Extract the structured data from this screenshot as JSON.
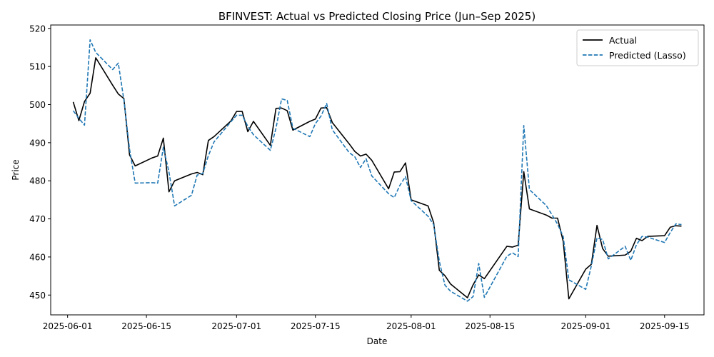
{
  "chart_data": {
    "type": "line",
    "title": "BFINVEST: Actual vs Predicted Closing Price (Jun–Sep 2025)",
    "xlabel": "Date",
    "ylabel": "Price",
    "xlim": [
      "2025-05-29",
      "2025-09-22"
    ],
    "ylim": [
      444.8,
      520.9
    ],
    "y_ticks": [
      450,
      460,
      470,
      480,
      490,
      500,
      510,
      520
    ],
    "x_ticks": [
      "2025-06-01",
      "2025-06-15",
      "2025-07-01",
      "2025-07-15",
      "2025-08-01",
      "2025-08-15",
      "2025-09-01",
      "2025-09-15"
    ],
    "grid": false,
    "legend_position": "upper right",
    "series": [
      {
        "name": "Actual",
        "color": "#000000",
        "style": "solid",
        "x": [
          "2025-06-02",
          "2025-06-03",
          "2025-06-04",
          "2025-06-05",
          "2025-06-06",
          "2025-06-09",
          "2025-06-10",
          "2025-06-11",
          "2025-06-12",
          "2025-06-13",
          "2025-06-16",
          "2025-06-17",
          "2025-06-18",
          "2025-06-19",
          "2025-06-20",
          "2025-06-23",
          "2025-06-24",
          "2025-06-25",
          "2025-06-26",
          "2025-06-27",
          "2025-06-30",
          "2025-07-01",
          "2025-07-02",
          "2025-07-03",
          "2025-07-04",
          "2025-07-07",
          "2025-07-08",
          "2025-07-09",
          "2025-07-10",
          "2025-07-11",
          "2025-07-14",
          "2025-07-15",
          "2025-07-16",
          "2025-07-17",
          "2025-07-18",
          "2025-07-21",
          "2025-07-22",
          "2025-07-23",
          "2025-07-24",
          "2025-07-25",
          "2025-07-28",
          "2025-07-29",
          "2025-07-30",
          "2025-07-31",
          "2025-08-01",
          "2025-08-04",
          "2025-08-05",
          "2025-08-06",
          "2025-08-07",
          "2025-08-08",
          "2025-08-11",
          "2025-08-12",
          "2025-08-13",
          "2025-08-14",
          "2025-08-18",
          "2025-08-19",
          "2025-08-20",
          "2025-08-21",
          "2025-08-22",
          "2025-08-25",
          "2025-08-26",
          "2025-08-27",
          "2025-08-28",
          "2025-08-29",
          "2025-09-01",
          "2025-09-02",
          "2025-09-03",
          "2025-09-04",
          "2025-09-05",
          "2025-09-08",
          "2025-09-09",
          "2025-09-10",
          "2025-09-11",
          "2025-09-12",
          "2025-09-15",
          "2025-09-16",
          "2025-09-17",
          "2025-09-18"
        ],
        "values": [
          500.7,
          495.8,
          500.8,
          503.0,
          512.3,
          505.1,
          502.8,
          501.6,
          486.8,
          483.9,
          486.0,
          486.5,
          491.2,
          477.1,
          480.0,
          481.8,
          482.2,
          481.6,
          490.6,
          491.6,
          495.7,
          498.2,
          498.2,
          492.9,
          495.6,
          489.3,
          499.0,
          499.1,
          498.4,
          493.3,
          495.6,
          496.2,
          499.1,
          499.2,
          495.3,
          489.7,
          487.7,
          486.5,
          487.0,
          485.4,
          477.9,
          482.3,
          482.4,
          484.7,
          475.0,
          473.4,
          469.0,
          456.5,
          455.1,
          452.9,
          449.3,
          452.7,
          455.3,
          454.3,
          462.8,
          462.6,
          463.1,
          482.4,
          472.6,
          471.0,
          470.2,
          470.2,
          464.1,
          449.0,
          456.8,
          458.1,
          468.3,
          462.2,
          460.2,
          460.5,
          461.5,
          464.9,
          464.3,
          465.4,
          465.6,
          467.8,
          468.2,
          468.1
        ]
      },
      {
        "name": "Predicted (Lasso)",
        "color": "#1f77b4",
        "style": "dashed",
        "x": [
          "2025-06-02",
          "2025-06-03",
          "2025-06-04",
          "2025-06-05",
          "2025-06-06",
          "2025-06-09",
          "2025-06-10",
          "2025-06-11",
          "2025-06-12",
          "2025-06-13",
          "2025-06-16",
          "2025-06-17",
          "2025-06-18",
          "2025-06-19",
          "2025-06-20",
          "2025-06-23",
          "2025-06-24",
          "2025-06-25",
          "2025-06-26",
          "2025-06-27",
          "2025-06-30",
          "2025-07-01",
          "2025-07-02",
          "2025-07-03",
          "2025-07-04",
          "2025-07-07",
          "2025-07-08",
          "2025-07-09",
          "2025-07-10",
          "2025-07-11",
          "2025-07-14",
          "2025-07-15",
          "2025-07-16",
          "2025-07-17",
          "2025-07-18",
          "2025-07-21",
          "2025-07-22",
          "2025-07-23",
          "2025-07-24",
          "2025-07-25",
          "2025-07-28",
          "2025-07-29",
          "2025-07-30",
          "2025-07-31",
          "2025-08-01",
          "2025-08-04",
          "2025-08-05",
          "2025-08-06",
          "2025-08-07",
          "2025-08-08",
          "2025-08-11",
          "2025-08-12",
          "2025-08-13",
          "2025-08-14",
          "2025-08-18",
          "2025-08-19",
          "2025-08-20",
          "2025-08-21",
          "2025-08-22",
          "2025-08-25",
          "2025-08-26",
          "2025-08-27",
          "2025-08-28",
          "2025-08-29",
          "2025-09-01",
          "2025-09-02",
          "2025-09-03",
          "2025-09-04",
          "2025-09-05",
          "2025-09-08",
          "2025-09-09",
          "2025-09-10",
          "2025-09-11",
          "2025-09-12",
          "2025-09-15",
          "2025-09-16",
          "2025-09-17",
          "2025-09-18"
        ],
        "values": [
          498.4,
          496.4,
          494.6,
          517.0,
          513.7,
          509.2,
          510.9,
          501.2,
          488.3,
          479.4,
          479.5,
          479.4,
          488.8,
          482.3,
          473.4,
          476.2,
          481.5,
          481.9,
          486.6,
          490.2,
          495.5,
          497.2,
          497.2,
          494.3,
          492.1,
          488.0,
          493.8,
          501.5,
          501.1,
          493.8,
          491.6,
          495.0,
          497.0,
          500.3,
          493.4,
          487.4,
          486.3,
          483.5,
          485.8,
          481.3,
          476.6,
          475.6,
          478.8,
          481.1,
          474.8,
          470.7,
          468.5,
          458.9,
          452.6,
          451.0,
          448.4,
          449.6,
          458.3,
          449.4,
          460.2,
          461.1,
          460.1,
          494.5,
          477.7,
          473.5,
          471.1,
          468.6,
          465.4,
          454.0,
          451.5,
          457.7,
          465.0,
          464.6,
          459.5,
          462.8,
          459.1,
          463.2,
          465.4,
          465.2,
          463.8,
          466.4,
          468.7,
          468.5
        ]
      }
    ]
  }
}
